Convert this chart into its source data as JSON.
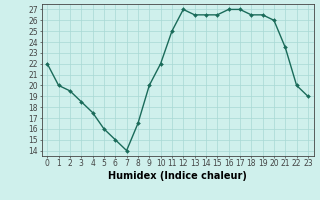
{
  "x": [
    0,
    1,
    2,
    3,
    4,
    5,
    6,
    7,
    8,
    9,
    10,
    11,
    12,
    13,
    14,
    15,
    16,
    17,
    18,
    19,
    20,
    21,
    22,
    23
  ],
  "y": [
    22,
    20,
    19.5,
    18.5,
    17.5,
    16,
    15,
    14,
    16.5,
    20,
    22,
    25,
    27,
    26.5,
    26.5,
    26.5,
    27,
    27,
    26.5,
    26.5,
    26,
    23.5,
    20,
    19
  ],
  "line_color": "#1a6b5a",
  "marker": "D",
  "marker_size": 2,
  "bg_color": "#cff0ec",
  "grid_color": "#a8d8d4",
  "xlabel": "Humidex (Indice chaleur)",
  "xlim": [
    -0.5,
    23.5
  ],
  "ylim": [
    13.5,
    27.5
  ],
  "yticks": [
    14,
    15,
    16,
    17,
    18,
    19,
    20,
    21,
    22,
    23,
    24,
    25,
    26,
    27
  ],
  "xticks": [
    0,
    1,
    2,
    3,
    4,
    5,
    6,
    7,
    8,
    9,
    10,
    11,
    12,
    13,
    14,
    15,
    16,
    17,
    18,
    19,
    20,
    21,
    22,
    23
  ],
  "tick_fontsize": 5.5,
  "xlabel_fontsize": 7,
  "line_width": 1.0,
  "axis_color": "#444444"
}
